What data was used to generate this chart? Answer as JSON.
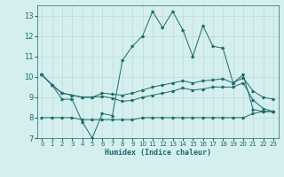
{
  "xlabel": "Humidex (Indice chaleur)",
  "bg_color": "#d5eeee",
  "grid_color": "#c0dede",
  "line_color": "#1a6b6b",
  "xlim": [
    -0.5,
    23.5
  ],
  "ylim": [
    7,
    13.5
  ],
  "xticks": [
    0,
    1,
    2,
    3,
    4,
    5,
    6,
    7,
    8,
    9,
    10,
    11,
    12,
    13,
    14,
    15,
    16,
    17,
    18,
    19,
    20,
    21,
    22,
    23
  ],
  "yticks": [
    7,
    8,
    9,
    10,
    11,
    12,
    13
  ],
  "series": [
    [
      10.1,
      9.6,
      8.9,
      8.9,
      7.8,
      7.0,
      8.2,
      8.1,
      10.8,
      11.5,
      12.0,
      13.2,
      12.4,
      13.2,
      12.3,
      11.0,
      12.5,
      11.5,
      11.4,
      9.7,
      10.1,
      8.4,
      8.3,
      8.3
    ],
    [
      10.1,
      9.6,
      9.2,
      9.1,
      9.0,
      9.0,
      9.2,
      9.15,
      9.1,
      9.2,
      9.35,
      9.5,
      9.6,
      9.7,
      9.8,
      9.7,
      9.8,
      9.85,
      9.9,
      9.7,
      9.95,
      9.3,
      9.0,
      8.9
    ],
    [
      10.1,
      9.6,
      9.2,
      9.1,
      9.0,
      9.0,
      9.05,
      8.95,
      8.8,
      8.85,
      9.0,
      9.1,
      9.2,
      9.3,
      9.45,
      9.35,
      9.4,
      9.5,
      9.5,
      9.5,
      9.7,
      8.85,
      8.45,
      8.3
    ],
    [
      8.0,
      8.0,
      8.0,
      8.0,
      7.9,
      7.9,
      7.9,
      7.9,
      7.9,
      7.9,
      8.0,
      8.0,
      8.0,
      8.0,
      8.0,
      8.0,
      8.0,
      8.0,
      8.0,
      8.0,
      8.0,
      8.2,
      8.3,
      8.3
    ]
  ]
}
